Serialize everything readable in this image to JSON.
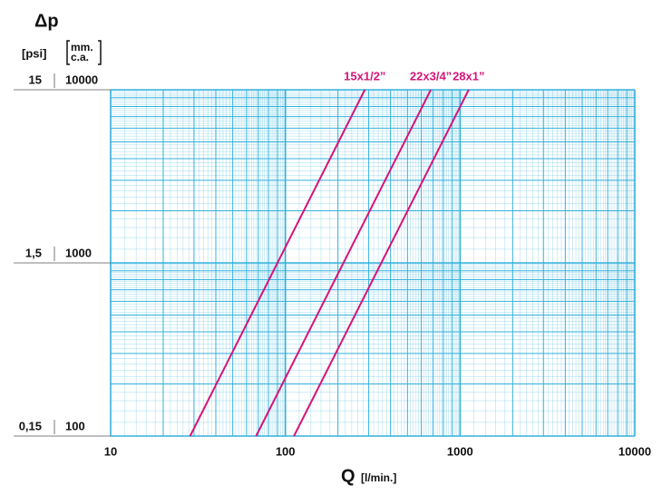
{
  "chart_data": {
    "type": "line",
    "y_title": "Δp",
    "y2_unit": "[psi]",
    "y_unit": [
      "mm.",
      "c.a."
    ],
    "x_title": "Q",
    "x_unit": "[l/min.]",
    "xlog": true,
    "ylog": true,
    "grid": true,
    "grid_color": "#33b0dc",
    "xlim": [
      10,
      10000
    ],
    "xticks": [
      10,
      100,
      1000,
      10000
    ],
    "ylim": [
      100,
      10000
    ],
    "yticks": [
      100,
      1000,
      10000
    ],
    "y2lim": [
      0.15,
      15
    ],
    "y2ticks": [
      {
        "value": 0.15,
        "label": "0,15"
      },
      {
        "value": 1.5,
        "label": "1,5"
      },
      15
    ],
    "series": [
      {
        "name": "15x1/2”",
        "color": "#d6147a",
        "x": [
          28.5,
          285
        ],
        "values": [
          100,
          10000
        ]
      },
      {
        "name": "22x3/4”",
        "color": "#d6147a",
        "x": [
          68,
          680
        ],
        "values": [
          100,
          10000
        ]
      },
      {
        "name": "28x1”",
        "color": "#d6147a",
        "x": [
          112,
          1120
        ],
        "values": [
          100,
          10000
        ]
      }
    ]
  }
}
